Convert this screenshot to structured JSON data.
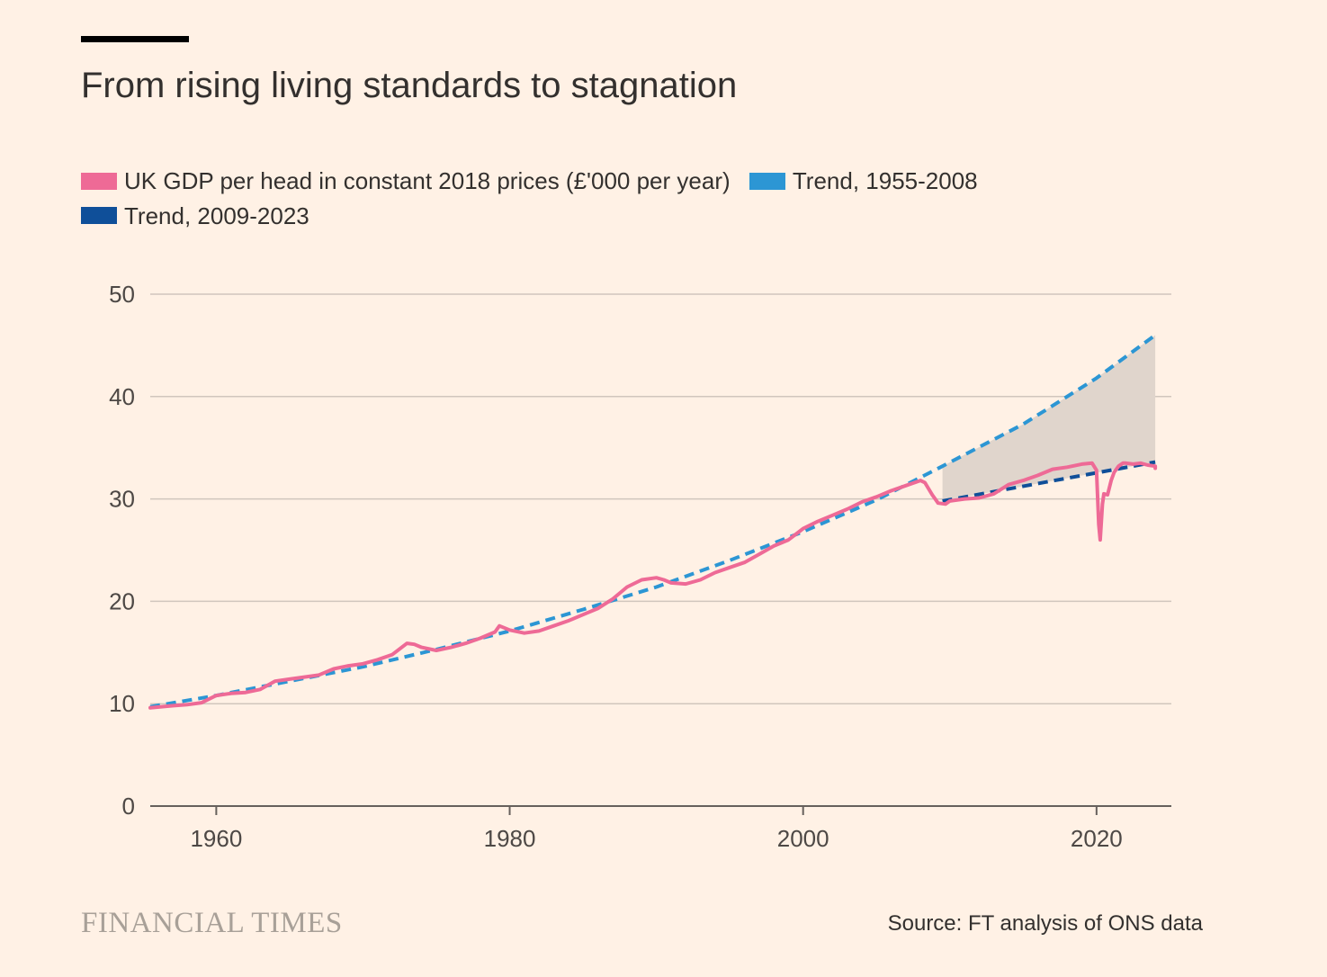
{
  "chart_data": {
    "type": "line",
    "title": "From rising living standards to stagnation",
    "xlabel": "",
    "ylabel": "",
    "xlim": [
      1955.5,
      2025.1
    ],
    "ylim": [
      0,
      50
    ],
    "x_ticks": [
      "1960",
      "1980",
      "2000",
      "2020"
    ],
    "y_ticks": [
      "0",
      "10",
      "20",
      "30",
      "40",
      "50"
    ],
    "grid": true,
    "legend_position": "top-left",
    "source": "Source: FT analysis of ONS data",
    "brand": "FINANCIAL TIMES",
    "colors": {
      "background": "#fff1e5",
      "gdp": "#ee6a96",
      "trend_1955_2008": "#2c96d4",
      "trend_2009_2023": "#0f4f99",
      "gap_fill": "#e0d5cc",
      "grid": "#d0c6bd",
      "axis": "#66605c"
    },
    "series": [
      {
        "name": "UK GDP per head in constant 2018 prices (£'000 per year)",
        "style": "solid",
        "x": [
          1955.5,
          1957,
          1958,
          1959,
          1960,
          1961,
          1962,
          1963,
          1964,
          1965,
          1966,
          1967,
          1968,
          1969,
          1970,
          1971,
          1972,
          1973,
          1973.5,
          1974,
          1975,
          1976,
          1977,
          1978,
          1979,
          1979.3,
          1980,
          1981,
          1982,
          1983,
          1984,
          1985,
          1986,
          1987,
          1988,
          1989,
          1990,
          1990.5,
          1991,
          1992,
          1993,
          1994,
          1995,
          1996,
          1997,
          1998,
          1999,
          2000,
          2001,
          2002,
          2003,
          2004,
          2005,
          2006,
          2007,
          2008,
          2008.3,
          2008.8,
          2009.2,
          2009.7,
          2010,
          2011,
          2012,
          2013,
          2014,
          2015,
          2016,
          2017,
          2018,
          2019,
          2019.7,
          2020.0,
          2020.15,
          2020.25,
          2020.4,
          2020.5,
          2020.75,
          2021.0,
          2021.2,
          2021.5,
          2021.8,
          2022,
          2022.5,
          2023,
          2023.5,
          2024,
          2024.0
        ],
        "values": [
          9.6,
          9.8,
          9.9,
          10.1,
          10.8,
          11.0,
          11.1,
          11.4,
          12.2,
          12.4,
          12.6,
          12.8,
          13.4,
          13.7,
          13.9,
          14.3,
          14.8,
          15.9,
          15.8,
          15.5,
          15.2,
          15.5,
          15.9,
          16.4,
          17.0,
          17.6,
          17.2,
          16.9,
          17.1,
          17.6,
          18.1,
          18.7,
          19.3,
          20.2,
          21.4,
          22.1,
          22.3,
          22.1,
          21.8,
          21.7,
          22.1,
          22.8,
          23.3,
          23.8,
          24.6,
          25.4,
          26.0,
          27.1,
          27.8,
          28.4,
          29.0,
          29.7,
          30.2,
          30.8,
          31.3,
          31.8,
          31.6,
          30.4,
          29.6,
          29.5,
          29.8,
          30.0,
          30.1,
          30.5,
          31.4,
          31.8,
          32.3,
          32.9,
          33.1,
          33.4,
          33.5,
          32.8,
          27.5,
          26.0,
          29.5,
          30.5,
          30.4,
          31.8,
          32.6,
          33.2,
          33.5,
          33.5,
          33.4,
          33.5,
          33.3,
          33.2,
          33.0
        ]
      },
      {
        "name": "Trend, 1955-2008",
        "style": "dashed",
        "x": [
          1955.5,
          1960,
          1965,
          1970,
          1975,
          1980,
          1985,
          1990,
          1995,
          2000,
          2005,
          2009.5,
          2015,
          2020,
          2024
        ],
        "values": [
          9.7,
          10.8,
          12.2,
          13.6,
          15.3,
          17.1,
          19.2,
          21.4,
          24.0,
          26.8,
          29.9,
          33.2,
          37.3,
          41.8,
          46.0
        ]
      },
      {
        "name": "Trend, 2009-2023",
        "style": "dashed",
        "x": [
          2009.5,
          2024
        ],
        "values": [
          29.8,
          33.6
        ]
      }
    ],
    "shaded_gap": {
      "between": [
        "Trend, 1955-2008",
        "Trend, 2009-2023"
      ],
      "x_range": [
        2009.5,
        2024
      ]
    }
  }
}
